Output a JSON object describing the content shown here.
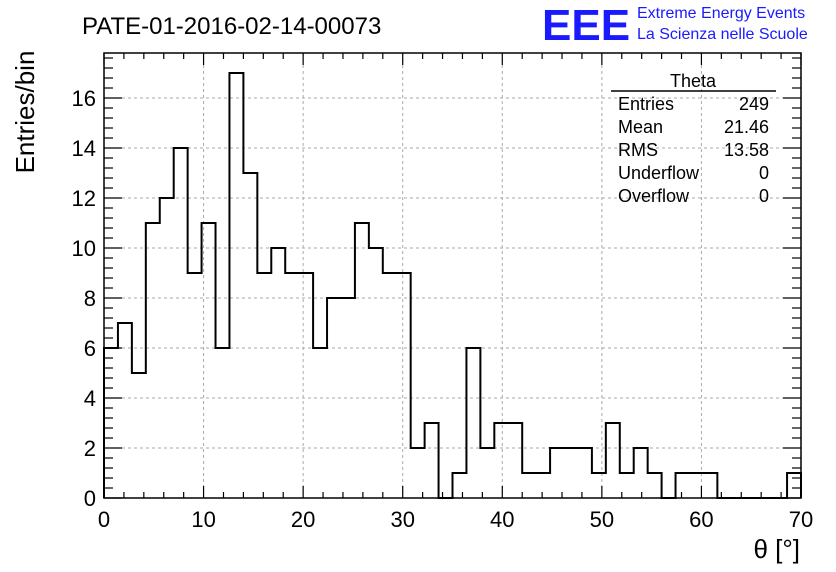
{
  "chart_data": {
    "type": "bar",
    "style": "step-histogram",
    "title": "PATE-01-2016-02-14-00073",
    "xlabel": "θ [°]",
    "ylabel": "Entries/bin",
    "xlim": [
      0,
      70
    ],
    "ylim": [
      0,
      17.8
    ],
    "grid": true,
    "bin_width": 1.4,
    "x_ticks": [
      0,
      10,
      20,
      30,
      40,
      50,
      60,
      70
    ],
    "y_ticks": [
      0,
      2,
      4,
      6,
      8,
      10,
      12,
      14,
      16
    ],
    "values": [
      6,
      7,
      5,
      11,
      12,
      14,
      9,
      11,
      6,
      17,
      13,
      9,
      10,
      9,
      9,
      6,
      8,
      8,
      11,
      10,
      9,
      9,
      2,
      3,
      0,
      1,
      6,
      2,
      3,
      3,
      1,
      1,
      2,
      2,
      2,
      1,
      3,
      1,
      2,
      1,
      0,
      1,
      1,
      1,
      0,
      0,
      0,
      0,
      0,
      1
    ],
    "stats_box": {
      "title": "Theta",
      "rows": [
        {
          "label": "Entries",
          "value": "249"
        },
        {
          "label": "Mean",
          "value": "21.46"
        },
        {
          "label": "RMS",
          "value": "13.58"
        },
        {
          "label": "Underflow",
          "value": "0"
        },
        {
          "label": "Overflow",
          "value": "0"
        }
      ],
      "placement": "top-right"
    },
    "colors": {
      "line": "#000000",
      "grid": "#aaaaaa",
      "logo": "#1a1aff"
    }
  },
  "logo": {
    "mark": "EEE",
    "line1": "Extreme Energy Events",
    "line2": "La Scienza nelle Scuole"
  }
}
